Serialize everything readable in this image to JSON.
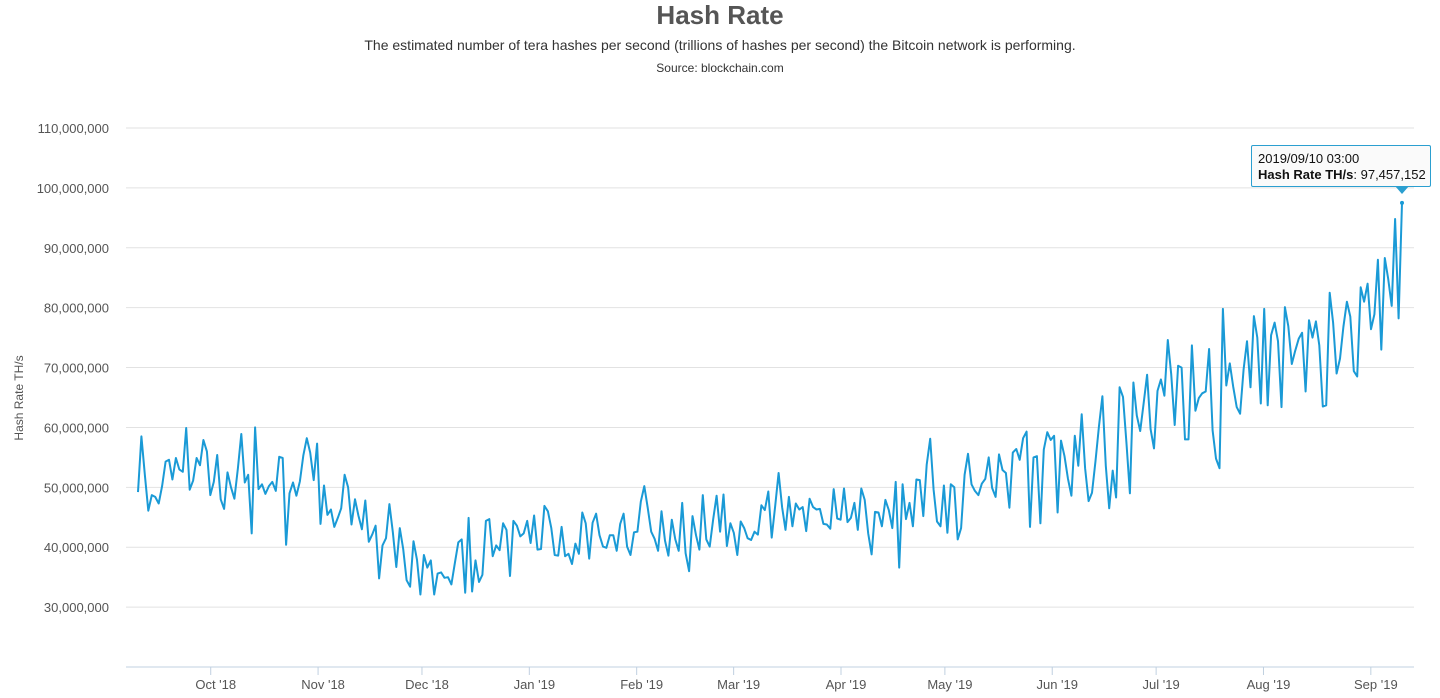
{
  "chart_data": {
    "type": "line",
    "title": "Hash Rate",
    "subtitle": "The estimated number of tera hashes per second (trillions of hashes per second) the Bitcoin network is performing.",
    "source": "Source: blockchain.com",
    "ylabel": "Hash Rate TH/s",
    "xlabel": "",
    "ylim": [
      20000000,
      110000000
    ],
    "y_ticks": [
      "30,000,000",
      "40,000,000",
      "50,000,000",
      "60,000,000",
      "70,000,000",
      "80,000,000",
      "90,000,000",
      "100,000,000",
      "110,000,000"
    ],
    "x_ticks": [
      "Oct '18",
      "Nov '18",
      "Dec '18",
      "Jan '19",
      "Feb '19",
      "Mar '19",
      "Apr '19",
      "May '19",
      "Jun '19",
      "Jul '19",
      "Aug '19",
      "Sep '19"
    ],
    "grid": true,
    "line_color": "#1a9ad6",
    "series": [
      {
        "x_start": "2018/09/10",
        "x_end": "2019/09/10",
        "values": [
          49.2,
          58.5,
          52.0,
          46.1,
          48.7,
          48.4,
          47.3,
          50.2,
          54.3,
          54.6,
          51.3,
          54.9,
          53.0,
          52.6,
          59.9,
          49.6,
          51.1,
          54.9,
          53.7,
          57.9,
          56.0,
          48.7,
          50.9,
          55.4,
          48.0,
          46.4,
          52.5,
          50.0,
          48.1,
          53.2,
          58.9,
          50.8,
          52.1,
          42.3,
          60.0,
          49.7,
          50.5,
          48.9,
          50.2,
          50.9,
          49.4,
          55.1,
          54.9,
          40.4,
          49.0,
          50.8,
          48.6,
          51.0,
          55.3,
          58.2,
          55.8,
          51.2,
          57.3,
          43.9,
          50.3,
          45.4,
          46.3,
          43.4,
          44.9,
          46.5,
          52.1,
          50.0,
          43.8,
          48.0,
          45.3,
          43.0,
          47.8,
          40.9,
          42.1,
          43.6,
          34.8,
          40.3,
          41.5,
          47.2,
          42.4,
          36.7,
          43.2,
          39.7,
          34.5,
          33.4,
          41.0,
          37.9,
          32.1,
          38.7,
          36.6,
          37.8,
          32.1,
          35.6,
          35.8,
          34.9,
          35.0,
          33.8,
          37.4,
          40.8,
          41.3,
          32.4,
          44.9,
          32.6,
          37.8,
          34.2,
          35.4,
          44.4,
          44.7,
          38.5,
          40.3,
          39.5,
          44.0,
          42.9,
          35.2,
          44.4,
          43.6,
          41.8,
          42.3,
          44.4,
          40.7,
          45.3,
          39.6,
          39.7,
          46.9,
          46.0,
          43.2,
          38.7,
          38.6,
          43.4,
          38.5,
          38.9,
          37.2,
          40.6,
          38.9,
          45.8,
          44.0,
          38.1,
          44.1,
          45.6,
          42.0,
          40.1,
          39.9,
          42.0,
          42.0,
          39.4,
          43.9,
          45.6,
          40.1,
          38.7,
          42.5,
          42.6,
          47.6,
          50.2,
          46.6,
          42.6,
          41.4,
          39.4,
          46.0,
          41.1,
          38.6,
          44.6,
          41.3,
          39.4,
          47.4,
          39.0,
          36.0,
          45.2,
          42.0,
          39.6,
          48.7,
          41.3,
          40.1,
          44.7,
          48.6,
          42.6,
          48.8,
          40.2,
          44.0,
          42.4,
          38.7,
          44.3,
          43.2,
          41.5,
          41.2,
          42.6,
          42.1,
          47.0,
          46.2,
          49.3,
          41.6,
          46.9,
          52.4,
          46.7,
          42.9,
          48.4,
          43.5,
          47.3,
          46.3,
          46.7,
          42.7,
          48.1,
          46.7,
          46.3,
          46.4,
          43.9,
          43.8,
          43.1,
          49.7,
          44.8,
          44.6,
          49.8,
          44.2,
          44.9,
          47.4,
          42.9,
          49.8,
          47.9,
          42.3,
          38.8,
          45.9,
          45.8,
          43.5,
          47.9,
          46.2,
          43.2,
          50.9,
          36.6,
          50.5,
          44.7,
          47.4,
          43.5,
          51.3,
          51.2,
          45.2,
          53.8,
          58.1,
          49.6,
          44.3,
          43.5,
          50.3,
          42.4,
          50.5,
          50.0,
          41.3,
          43.2,
          52.1,
          55.6,
          50.5,
          49.4,
          48.7,
          50.6,
          51.4,
          55.0,
          49.9,
          48.4,
          55.5,
          52.9,
          52.4,
          46.6,
          55.8,
          56.4,
          54.6,
          58.2,
          59.3,
          43.4,
          55.0,
          55.2,
          44.0,
          56.3,
          59.2,
          57.9,
          58.6,
          45.8,
          57.8,
          55.2,
          51.5,
          48.6,
          58.6,
          53.6,
          62.2,
          53.2,
          47.7,
          49.1,
          54.4,
          60.1,
          65.2,
          53.6,
          46.5,
          52.8,
          48.3,
          66.7,
          65.1,
          57.3,
          49.0,
          67.5,
          62.0,
          59.4,
          64.1,
          68.8,
          59.7,
          56.5,
          66.1,
          68.0,
          65.3,
          74.6,
          68.9,
          60.4,
          70.3,
          70.0,
          58.0,
          58.0,
          73.7,
          62.8,
          64.9,
          65.7,
          66.0,
          73.1,
          59.5,
          54.8,
          53.2,
          79.8,
          67.0,
          70.7,
          66.8,
          63.4,
          62.3,
          69.7,
          74.4,
          66.7,
          78.6,
          75.0,
          64.0,
          79.8,
          63.7,
          75.4,
          77.5,
          74.4,
          63.4,
          80.1,
          76.9,
          70.6,
          72.8,
          74.8,
          75.8,
          66.0,
          77.9,
          75.0,
          77.7,
          73.7,
          63.5,
          63.7,
          82.5,
          77.5,
          69.0,
          71.5,
          76.8,
          81.0,
          78.5,
          69.4,
          68.5,
          83.4,
          81.0,
          84.0,
          76.4,
          78.9,
          88.0,
          73.0,
          88.3,
          84.8,
          80.3,
          94.8,
          78.2,
          97.5
        ]
      }
    ],
    "tooltip": {
      "date": "2019/09/10 03:00",
      "label": "Hash Rate TH/s",
      "value": "97,457,152"
    }
  }
}
